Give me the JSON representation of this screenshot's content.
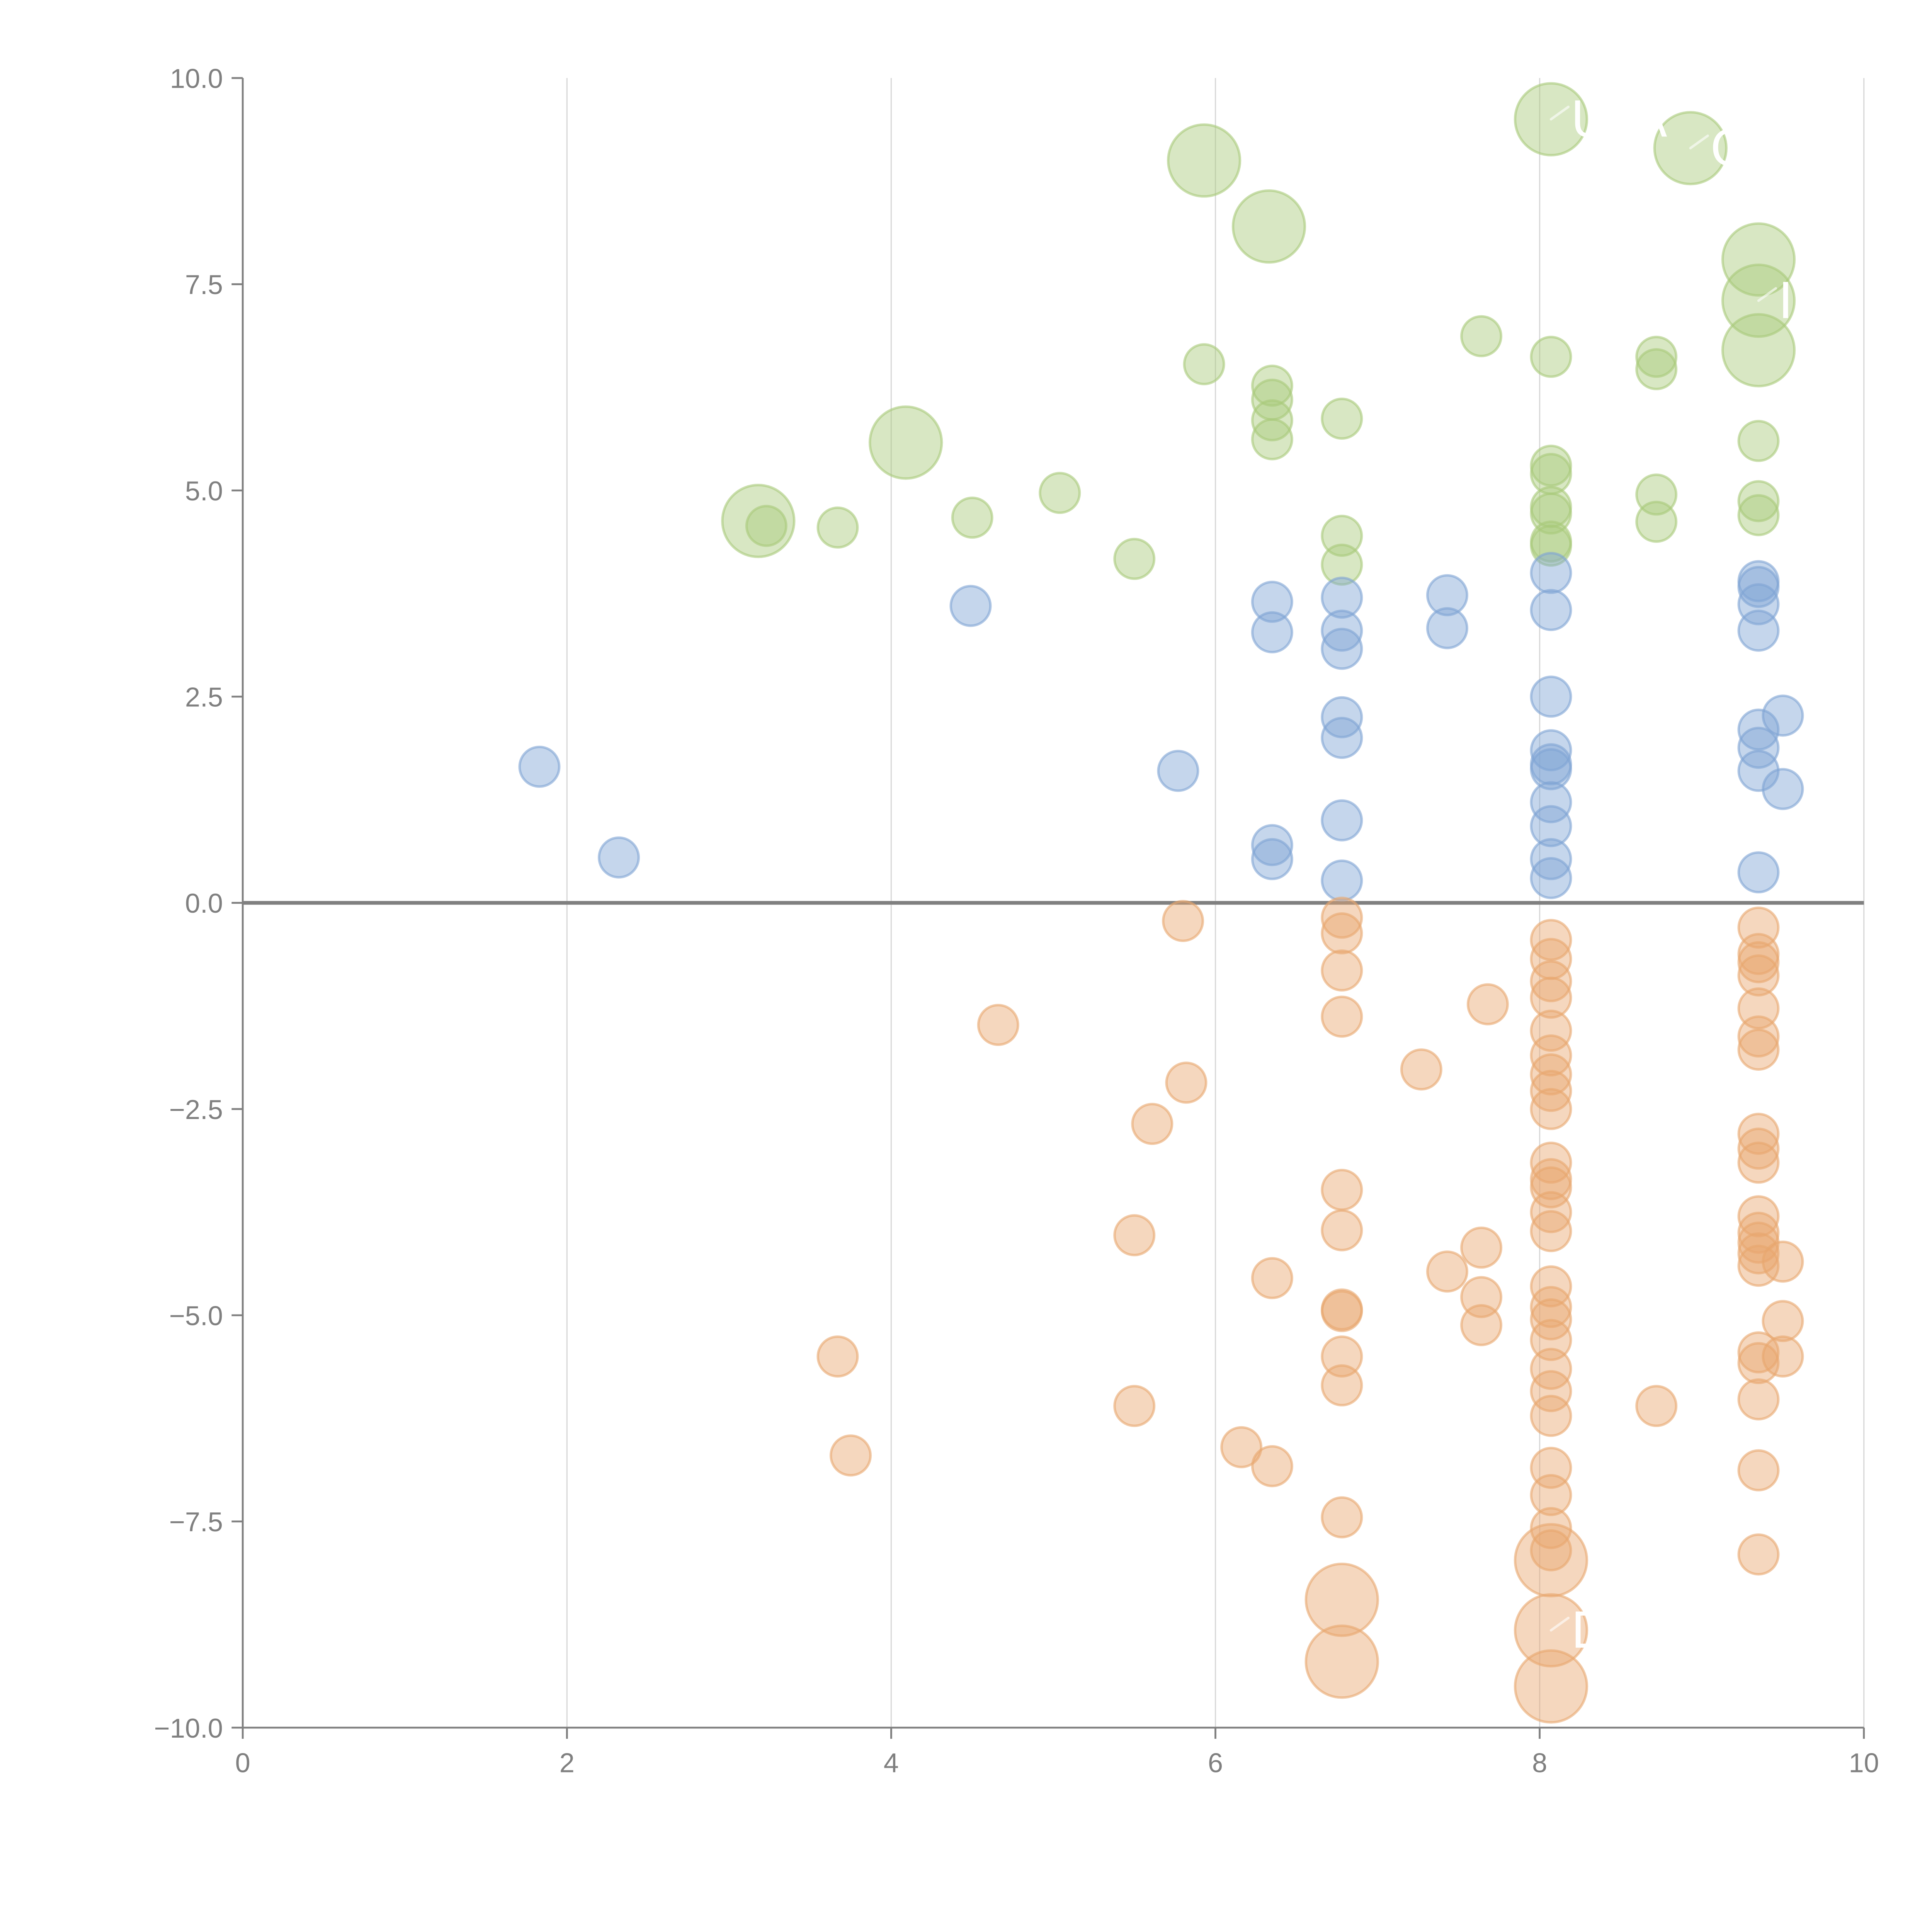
{
  "chart_data": {
    "type": "scatter",
    "subtype": "bubble",
    "title": "",
    "xlabel": "",
    "ylabel": "",
    "xlim": [
      0,
      10
    ],
    "ylim": [
      -10,
      10
    ],
    "x_ticks": [
      "0",
      "2",
      "4",
      "6",
      "8",
      "10"
    ],
    "y_ticks": [
      "10.0",
      "7.5",
      "5.0",
      "2.5",
      "0.0",
      "−2.5",
      "−5.0",
      "−7.5",
      "−10.0"
    ],
    "x_tick_values": [
      0,
      2,
      4,
      6,
      8,
      10
    ],
    "y_tick_values": [
      10,
      7.5,
      5,
      2.5,
      0,
      -2.5,
      -5,
      -7.5,
      -10
    ],
    "grid": "vertical",
    "zero_line": true,
    "legend": "none",
    "series": [
      {
        "name": "green",
        "color": "#a9c97a",
        "points": [
          {
            "x": 8.07,
            "y": 9.5,
            "size": 3
          },
          {
            "x": 8.93,
            "y": 9.15,
            "size": 3
          },
          {
            "x": 5.93,
            "y": 9.0,
            "size": 3
          },
          {
            "x": 6.33,
            "y": 8.2,
            "size": 3
          },
          {
            "x": 9.35,
            "y": 7.8,
            "size": 3
          },
          {
            "x": 9.35,
            "y": 7.3,
            "size": 3
          },
          {
            "x": 9.35,
            "y": 6.7,
            "size": 3
          },
          {
            "x": 4.09,
            "y": 5.58,
            "size": 3
          },
          {
            "x": 3.18,
            "y": 4.63,
            "size": 3
          },
          {
            "x": 7.64,
            "y": 6.87,
            "size": 1
          },
          {
            "x": 8.07,
            "y": 6.62,
            "size": 1
          },
          {
            "x": 8.72,
            "y": 6.62,
            "size": 1
          },
          {
            "x": 8.72,
            "y": 6.47,
            "size": 1
          },
          {
            "x": 5.93,
            "y": 6.53,
            "size": 1
          },
          {
            "x": 6.35,
            "y": 6.27,
            "size": 1
          },
          {
            "x": 6.35,
            "y": 6.1,
            "size": 1
          },
          {
            "x": 6.35,
            "y": 5.85,
            "size": 1
          },
          {
            "x": 6.35,
            "y": 5.62,
            "size": 1
          },
          {
            "x": 6.78,
            "y": 5.87,
            "size": 1
          },
          {
            "x": 9.35,
            "y": 5.6,
            "size": 1
          },
          {
            "x": 8.07,
            "y": 5.3,
            "size": 1
          },
          {
            "x": 8.07,
            "y": 5.2,
            "size": 1
          },
          {
            "x": 8.07,
            "y": 4.8,
            "size": 1
          },
          {
            "x": 8.07,
            "y": 4.72,
            "size": 1
          },
          {
            "x": 8.07,
            "y": 4.38,
            "size": 1
          },
          {
            "x": 8.07,
            "y": 4.33,
            "size": 1
          },
          {
            "x": 8.72,
            "y": 4.95,
            "size": 1
          },
          {
            "x": 8.72,
            "y": 4.62,
            "size": 1
          },
          {
            "x": 9.35,
            "y": 4.87,
            "size": 1
          },
          {
            "x": 9.35,
            "y": 4.7,
            "size": 1
          },
          {
            "x": 5.04,
            "y": 4.97,
            "size": 1
          },
          {
            "x": 4.5,
            "y": 4.67,
            "size": 1
          },
          {
            "x": 3.67,
            "y": 4.55,
            "size": 1
          },
          {
            "x": 3.23,
            "y": 4.57,
            "size": 1
          },
          {
            "x": 5.5,
            "y": 4.17,
            "size": 1
          },
          {
            "x": 6.78,
            "y": 4.45,
            "size": 1
          },
          {
            "x": 6.78,
            "y": 4.1,
            "size": 1
          }
        ]
      },
      {
        "name": "blue",
        "color": "#7ea3d4",
        "points": [
          {
            "x": 1.83,
            "y": 1.65,
            "size": 1
          },
          {
            "x": 2.32,
            "y": 0.55,
            "size": 1
          },
          {
            "x": 4.49,
            "y": 3.6,
            "size": 1
          },
          {
            "x": 5.77,
            "y": 1.6,
            "size": 1
          },
          {
            "x": 6.35,
            "y": 3.65,
            "size": 1
          },
          {
            "x": 6.35,
            "y": 3.28,
            "size": 1
          },
          {
            "x": 6.35,
            "y": 0.7,
            "size": 1
          },
          {
            "x": 6.35,
            "y": 0.53,
            "size": 1
          },
          {
            "x": 6.78,
            "y": 3.7,
            "size": 1
          },
          {
            "x": 6.78,
            "y": 3.3,
            "size": 1
          },
          {
            "x": 6.78,
            "y": 3.08,
            "size": 1
          },
          {
            "x": 6.78,
            "y": 2.25,
            "size": 1
          },
          {
            "x": 6.78,
            "y": 2.0,
            "size": 1
          },
          {
            "x": 6.78,
            "y": 1.0,
            "size": 1
          },
          {
            "x": 6.78,
            "y": 0.27,
            "size": 1
          },
          {
            "x": 7.43,
            "y": 3.73,
            "size": 1
          },
          {
            "x": 7.43,
            "y": 3.33,
            "size": 1
          },
          {
            "x": 8.07,
            "y": 4.0,
            "size": 1
          },
          {
            "x": 8.07,
            "y": 3.55,
            "size": 1
          },
          {
            "x": 8.07,
            "y": 2.5,
            "size": 1
          },
          {
            "x": 8.07,
            "y": 1.85,
            "size": 1
          },
          {
            "x": 8.07,
            "y": 1.68,
            "size": 1
          },
          {
            "x": 8.07,
            "y": 1.62,
            "size": 1
          },
          {
            "x": 8.07,
            "y": 1.22,
            "size": 1
          },
          {
            "x": 8.07,
            "y": 0.93,
            "size": 1
          },
          {
            "x": 8.07,
            "y": 0.53,
            "size": 1
          },
          {
            "x": 8.07,
            "y": 0.3,
            "size": 1
          },
          {
            "x": 9.35,
            "y": 3.9,
            "size": 1
          },
          {
            "x": 9.35,
            "y": 3.83,
            "size": 1
          },
          {
            "x": 9.35,
            "y": 3.62,
            "size": 1
          },
          {
            "x": 9.35,
            "y": 3.3,
            "size": 1
          },
          {
            "x": 9.35,
            "y": 2.1,
            "size": 1
          },
          {
            "x": 9.35,
            "y": 1.88,
            "size": 1
          },
          {
            "x": 9.35,
            "y": 1.6,
            "size": 1
          },
          {
            "x": 9.35,
            "y": 0.37,
            "size": 1
          },
          {
            "x": 9.5,
            "y": 2.27,
            "size": 1
          },
          {
            "x": 9.5,
            "y": 1.38,
            "size": 1
          }
        ]
      },
      {
        "name": "orange",
        "color": "#e8a66e",
        "points": [
          {
            "x": 6.78,
            "y": -8.45,
            "size": 3
          },
          {
            "x": 6.78,
            "y": -9.2,
            "size": 3
          },
          {
            "x": 8.07,
            "y": -7.97,
            "size": 3
          },
          {
            "x": 8.07,
            "y": -8.82,
            "size": 3
          },
          {
            "x": 8.07,
            "y": -9.5,
            "size": 3
          },
          {
            "x": 5.8,
            "y": -0.22,
            "size": 1
          },
          {
            "x": 4.66,
            "y": -1.48,
            "size": 1
          },
          {
            "x": 5.82,
            "y": -2.18,
            "size": 1
          },
          {
            "x": 5.61,
            "y": -2.68,
            "size": 1
          },
          {
            "x": 5.5,
            "y": -4.03,
            "size": 1
          },
          {
            "x": 5.5,
            "y": -6.1,
            "size": 1
          },
          {
            "x": 3.67,
            "y": -5.5,
            "size": 1
          },
          {
            "x": 3.75,
            "y": -6.7,
            "size": 1
          },
          {
            "x": 6.16,
            "y": -6.6,
            "size": 1
          },
          {
            "x": 6.35,
            "y": -6.83,
            "size": 1
          },
          {
            "x": 6.35,
            "y": -4.55,
            "size": 1
          },
          {
            "x": 6.78,
            "y": -0.18,
            "size": 1
          },
          {
            "x": 6.78,
            "y": -0.37,
            "size": 1
          },
          {
            "x": 6.78,
            "y": -0.82,
            "size": 1
          },
          {
            "x": 6.78,
            "y": -1.38,
            "size": 1
          },
          {
            "x": 6.78,
            "y": -3.48,
            "size": 1
          },
          {
            "x": 6.78,
            "y": -3.97,
            "size": 1
          },
          {
            "x": 6.78,
            "y": -4.93,
            "size": 1
          },
          {
            "x": 6.78,
            "y": -4.95,
            "size": 1
          },
          {
            "x": 6.78,
            "y": -5.5,
            "size": 1
          },
          {
            "x": 6.78,
            "y": -5.85,
            "size": 1
          },
          {
            "x": 6.78,
            "y": -7.45,
            "size": 1
          },
          {
            "x": 7.27,
            "y": -2.02,
            "size": 1
          },
          {
            "x": 7.43,
            "y": -4.47,
            "size": 1
          },
          {
            "x": 7.64,
            "y": -4.18,
            "size": 1
          },
          {
            "x": 7.64,
            "y": -4.78,
            "size": 1
          },
          {
            "x": 7.64,
            "y": -5.12,
            "size": 1
          },
          {
            "x": 7.68,
            "y": -1.23,
            "size": 1
          },
          {
            "x": 8.07,
            "y": -0.45,
            "size": 1
          },
          {
            "x": 8.07,
            "y": -0.68,
            "size": 1
          },
          {
            "x": 8.07,
            "y": -0.95,
            "size": 1
          },
          {
            "x": 8.07,
            "y": -1.15,
            "size": 1
          },
          {
            "x": 8.07,
            "y": -1.55,
            "size": 1
          },
          {
            "x": 8.07,
            "y": -1.85,
            "size": 1
          },
          {
            "x": 8.07,
            "y": -2.08,
            "size": 1
          },
          {
            "x": 8.07,
            "y": -2.28,
            "size": 1
          },
          {
            "x": 8.07,
            "y": -2.5,
            "size": 1
          },
          {
            "x": 8.07,
            "y": -3.15,
            "size": 1
          },
          {
            "x": 8.07,
            "y": -3.35,
            "size": 1
          },
          {
            "x": 8.07,
            "y": -3.45,
            "size": 1
          },
          {
            "x": 8.07,
            "y": -3.75,
            "size": 1
          },
          {
            "x": 8.07,
            "y": -3.98,
            "size": 1
          },
          {
            "x": 8.07,
            "y": -4.65,
            "size": 1
          },
          {
            "x": 8.07,
            "y": -4.9,
            "size": 1
          },
          {
            "x": 8.07,
            "y": -5.05,
            "size": 1
          },
          {
            "x": 8.07,
            "y": -5.3,
            "size": 1
          },
          {
            "x": 8.07,
            "y": -5.65,
            "size": 1
          },
          {
            "x": 8.07,
            "y": -5.92,
            "size": 1
          },
          {
            "x": 8.07,
            "y": -6.22,
            "size": 1
          },
          {
            "x": 8.07,
            "y": -6.85,
            "size": 1
          },
          {
            "x": 8.07,
            "y": -7.18,
            "size": 1
          },
          {
            "x": 8.07,
            "y": -7.58,
            "size": 1
          },
          {
            "x": 8.07,
            "y": -7.85,
            "size": 1
          },
          {
            "x": 8.72,
            "y": -6.1,
            "size": 1
          },
          {
            "x": 9.35,
            "y": -0.3,
            "size": 1
          },
          {
            "x": 9.35,
            "y": -0.62,
            "size": 1
          },
          {
            "x": 9.35,
            "y": -0.72,
            "size": 1
          },
          {
            "x": 9.35,
            "y": -0.88,
            "size": 1
          },
          {
            "x": 9.35,
            "y": -1.28,
            "size": 1
          },
          {
            "x": 9.35,
            "y": -1.62,
            "size": 1
          },
          {
            "x": 9.35,
            "y": -1.78,
            "size": 1
          },
          {
            "x": 9.35,
            "y": -2.8,
            "size": 1
          },
          {
            "x": 9.35,
            "y": -2.98,
            "size": 1
          },
          {
            "x": 9.35,
            "y": -3.15,
            "size": 1
          },
          {
            "x": 9.35,
            "y": -3.8,
            "size": 1
          },
          {
            "x": 9.35,
            "y": -4.0,
            "size": 1
          },
          {
            "x": 9.35,
            "y": -4.12,
            "size": 1
          },
          {
            "x": 9.35,
            "y": -4.25,
            "size": 1
          },
          {
            "x": 9.35,
            "y": -4.4,
            "size": 1
          },
          {
            "x": 9.35,
            "y": -5.45,
            "size": 1
          },
          {
            "x": 9.35,
            "y": -5.58,
            "size": 1
          },
          {
            "x": 9.35,
            "y": -6.02,
            "size": 1
          },
          {
            "x": 9.35,
            "y": -6.88,
            "size": 1
          },
          {
            "x": 9.35,
            "y": -7.9,
            "size": 1
          },
          {
            "x": 9.5,
            "y": -4.35,
            "size": 1
          },
          {
            "x": 9.5,
            "y": -5.07,
            "size": 1
          },
          {
            "x": 9.5,
            "y": -5.5,
            "size": 1
          }
        ]
      }
    ],
    "annotations": [
      {
        "text": "UTA",
        "x": 8.07,
        "y": 9.5
      },
      {
        "text": "C",
        "x": 8.93,
        "y": 9.15
      },
      {
        "text": "IA",
        "x": 9.35,
        "y": 7.3
      },
      {
        "text": "D",
        "x": 8.07,
        "y": -8.82
      }
    ]
  }
}
